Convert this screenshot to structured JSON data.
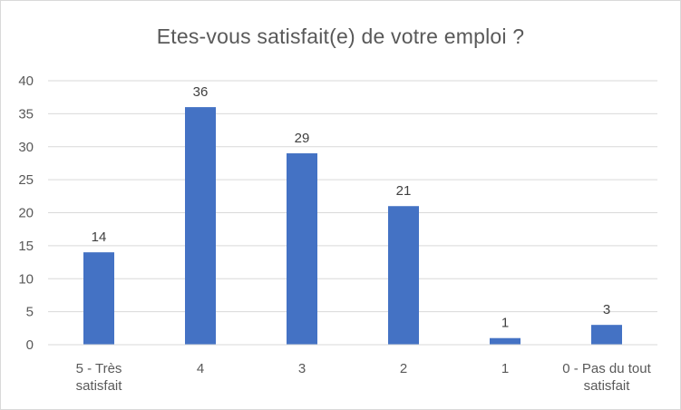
{
  "chart_data": {
    "type": "bar",
    "title": "Etes-vous satisfait(e) de votre emploi ?",
    "categories": [
      [
        "5 - Très",
        "satisfait"
      ],
      [
        "4"
      ],
      [
        "3"
      ],
      [
        "2"
      ],
      [
        "1"
      ],
      [
        "0 - Pas du tout",
        "satisfait"
      ]
    ],
    "values": [
      14,
      36,
      29,
      21,
      1,
      3
    ],
    "ylim": [
      0,
      40
    ],
    "yticks": [
      0,
      5,
      10,
      15,
      20,
      25,
      30,
      35,
      40
    ],
    "grid": true,
    "legend": "none",
    "bar_color": "#4472c4"
  }
}
